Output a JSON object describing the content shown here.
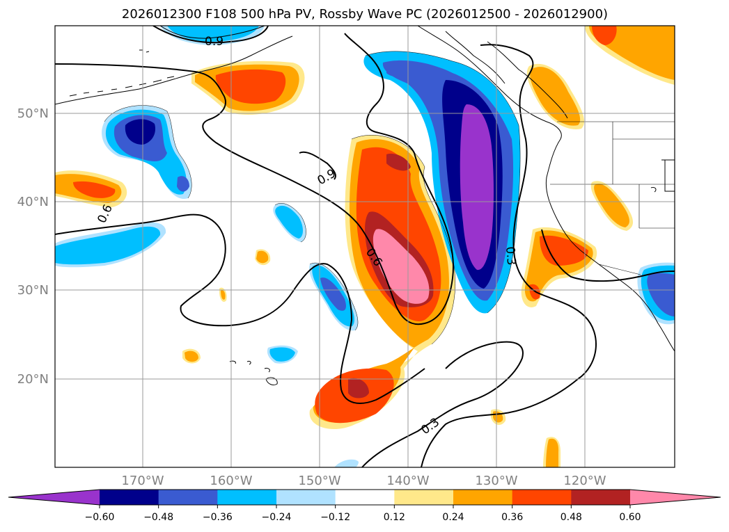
{
  "title": "2026012300 F108 500 hPa PV, Rossby Wave PC (2026012500 - 2026012900)",
  "latitudes": [
    "50°N",
    "40°N",
    "30°N",
    "20°N"
  ],
  "longitudes": [
    "170°W",
    "160°W",
    "150°W",
    "140°W",
    "130°W",
    "120°W"
  ],
  "colorbar": {
    "levels": [
      "−0.60",
      "−0.48",
      "−0.36",
      "−0.24",
      "−0.12",
      "0.12",
      "0.24",
      "0.36",
      "0.48",
      "0.60"
    ],
    "colors": [
      "#9933cc",
      "#00008b",
      "#3a5bd1",
      "#00bfff",
      "#b0e2ff",
      "#ffffff",
      "#ffe88a",
      "#ffa500",
      "#ff4500",
      "#b22222",
      "#ff88aa"
    ]
  },
  "contour_labels": [
    "0.9",
    "0.9",
    "0.6",
    "0.6",
    "0.3",
    "0.3"
  ],
  "colors": {
    "purple": "#9933cc",
    "navy": "#00008b",
    "royal": "#3a5bd1",
    "sky": "#00bfff",
    "light_blue": "#b0e2ff",
    "pale_yellow": "#ffe88a",
    "orange": "#ffa500",
    "red_orange": "#ff4500",
    "dark_red": "#b22222",
    "pink": "#ff88aa"
  }
}
